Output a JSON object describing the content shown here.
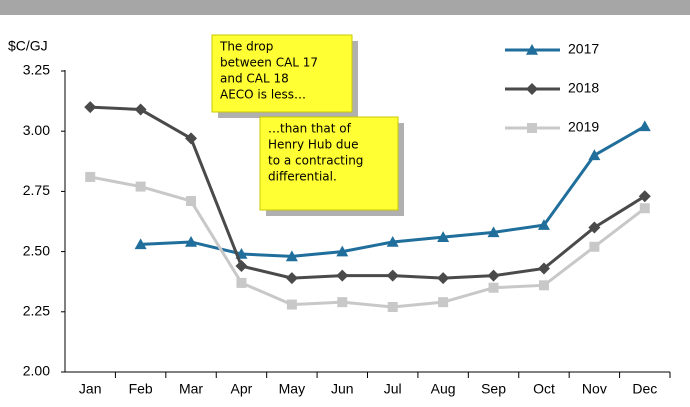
{
  "chart_data": {
    "type": "line",
    "y_label": "$C/GJ",
    "categories": [
      "Jan",
      "Feb",
      "Mar",
      "Apr",
      "May",
      "Jun",
      "Jul",
      "Aug",
      "Sep",
      "Oct",
      "Nov",
      "Dec"
    ],
    "series": [
      {
        "name": "2017",
        "color": "#1f6e9c",
        "marker": "triangle",
        "values": [
          null,
          2.53,
          2.54,
          2.49,
          2.48,
          2.5,
          2.54,
          2.56,
          2.58,
          2.61,
          2.9,
          3.02
        ]
      },
      {
        "name": "2018",
        "color": "#4a4a4a",
        "marker": "diamond",
        "values": [
          3.1,
          3.09,
          2.97,
          2.44,
          2.39,
          2.4,
          2.4,
          2.39,
          2.4,
          2.43,
          2.6,
          2.73
        ]
      },
      {
        "name": "2019",
        "color": "#c8c8c8",
        "marker": "square",
        "values": [
          2.81,
          2.77,
          2.71,
          2.37,
          2.28,
          2.29,
          2.27,
          2.29,
          2.35,
          2.36,
          2.52,
          2.68
        ]
      }
    ],
    "ylim": [
      2.0,
      3.25
    ],
    "yticks": [
      {
        "value": 2.0,
        "label": "2.00"
      },
      {
        "value": 2.25,
        "label": "2.25"
      },
      {
        "value": 2.5,
        "label": "2.50"
      },
      {
        "value": 2.75,
        "label": "2.75"
      },
      {
        "value": 3.0,
        "label": "3.00"
      },
      {
        "value": 3.25,
        "label": "3.25"
      }
    ],
    "legend": "top-right",
    "annotations": [
      {
        "lines": [
          "The drop",
          "between CAL 17",
          "and CAL 18",
          "AECO is less…"
        ]
      },
      {
        "lines": [
          "…than that of",
          "Henry Hub due",
          "to a contracting",
          "differential."
        ]
      }
    ]
  }
}
